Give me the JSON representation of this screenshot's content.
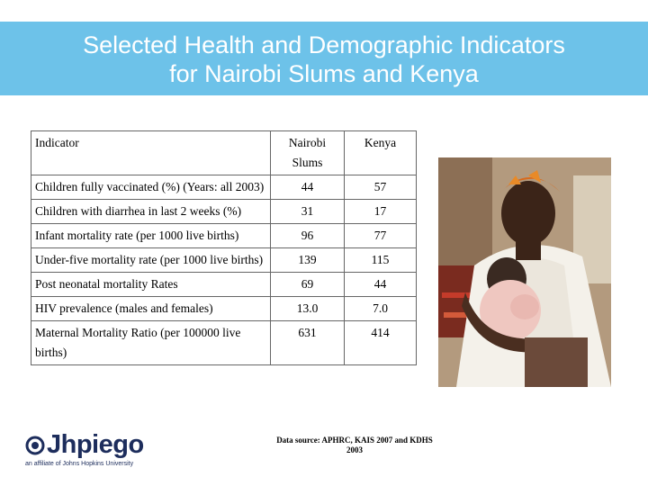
{
  "title": {
    "line1": "Selected Health and Demographic Indicators",
    "line2": "for Nairobi Slums and Kenya"
  },
  "table": {
    "headers": [
      "Indicator",
      "Nairobi Slums",
      "Kenya"
    ],
    "rows": [
      {
        "indicator": "Children fully vaccinated (%) (Years: all 2003)",
        "nairobi": "44",
        "kenya": "57"
      },
      {
        "indicator": "Children with diarrhea in last 2 weeks (%)",
        "nairobi": "31",
        "kenya": "17"
      },
      {
        "indicator": "Infant mortality rate (per 1000 live births)",
        "nairobi": "96",
        "kenya": "77"
      },
      {
        "indicator": "Under-five mortality rate (per 1000 live births)",
        "nairobi": "139",
        "kenya": "115"
      },
      {
        "indicator": "Post neonatal mortality Rates",
        "nairobi": "69",
        "kenya": "44"
      },
      {
        "indicator": "HIV prevalence (males and females)",
        "nairobi": "13.0",
        "kenya": "7.0"
      },
      {
        "indicator": "Maternal Mortality Ratio (per 100000 live births)",
        "nairobi": "631",
        "kenya": "414"
      }
    ]
  },
  "source": {
    "line1": "Data source: APHRC, KAIS 2007 and KDHS",
    "line2": "2003"
  },
  "logo": {
    "name": "Jhpiego",
    "tagline": "an affiliate of Johns Hopkins University"
  },
  "colors": {
    "title_bar": "#6dc2e9",
    "logo_blue": "#1d2d5c"
  }
}
